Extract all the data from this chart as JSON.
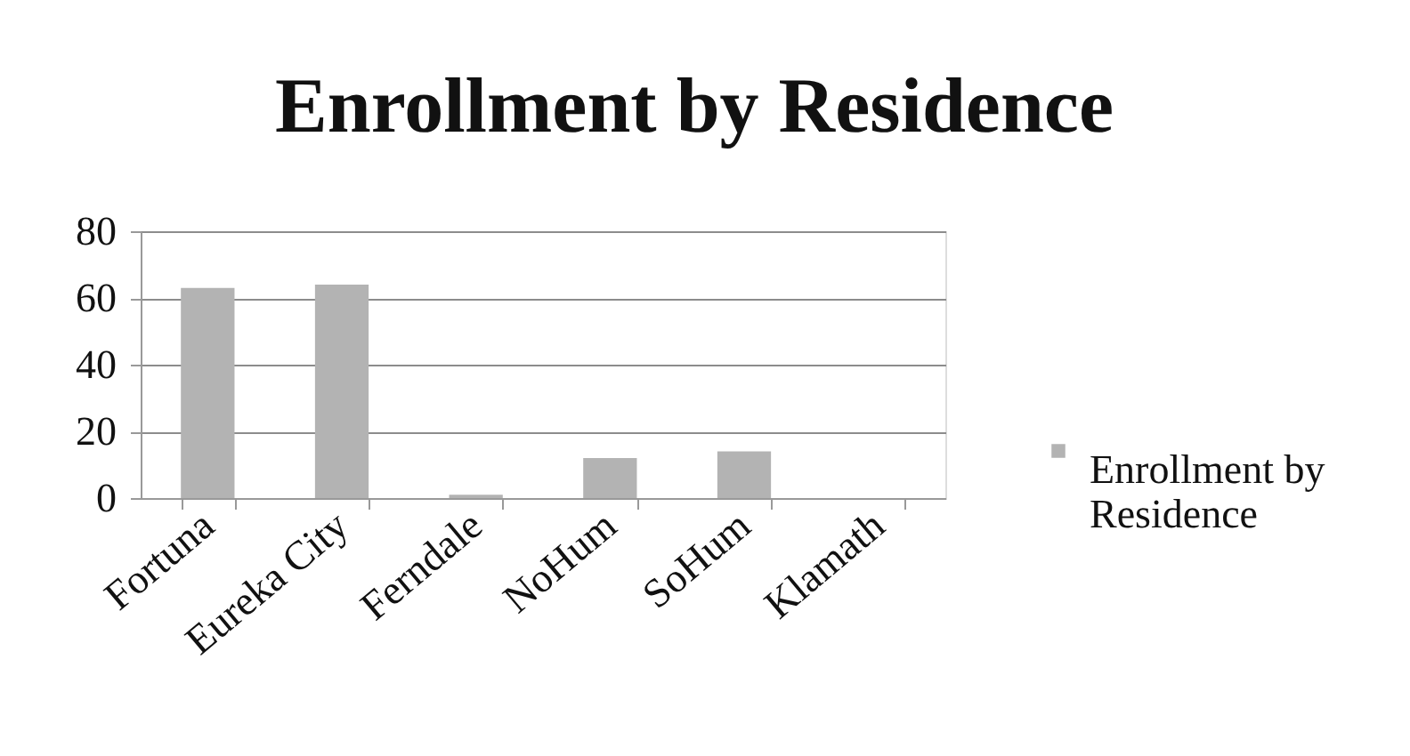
{
  "chart_data": {
    "type": "bar",
    "title": "Enrollment by Residence",
    "categories": [
      "Fortuna",
      "Eureka City",
      "Ferndale",
      "NoHum",
      "SoHum",
      "Klamath"
    ],
    "series": [
      {
        "name": "Enrollment by Residence",
        "color": "#b3b3b3",
        "values": [
          63,
          64,
          1,
          12,
          14,
          0
        ]
      }
    ],
    "ylim": [
      0,
      80
    ],
    "yticks": [
      0,
      20,
      40,
      60,
      80
    ],
    "grid": "y",
    "legend": "right"
  }
}
